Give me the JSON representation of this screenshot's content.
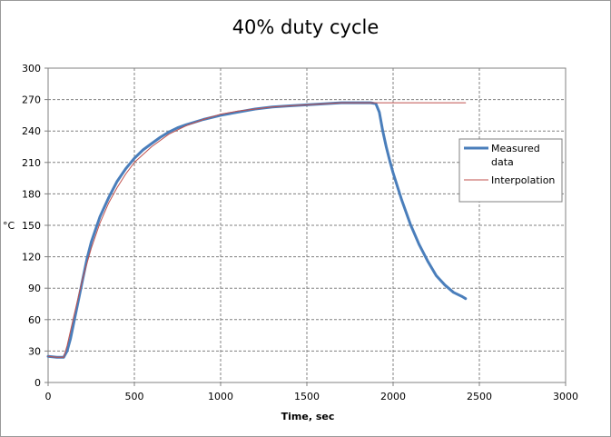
{
  "chart_data": {
    "type": "line",
    "title": "40% duty cycle",
    "xlabel": "Time, sec",
    "ylabel": "°C",
    "xlim": [
      0,
      3000
    ],
    "ylim": [
      0,
      300
    ],
    "x_ticks": [
      0,
      500,
      1000,
      1500,
      2000,
      2500,
      3000
    ],
    "y_ticks": [
      0,
      30,
      60,
      90,
      120,
      150,
      180,
      210,
      240,
      270,
      300
    ],
    "grid": true,
    "legend_position": "right",
    "series": [
      {
        "name": "Measured data",
        "color": "#4a7ebb",
        "x": [
          0,
          50,
          90,
          110,
          130,
          150,
          175,
          200,
          225,
          250,
          300,
          350,
          400,
          450,
          500,
          550,
          600,
          650,
          700,
          750,
          800,
          900,
          1000,
          1100,
          1200,
          1300,
          1400,
          1500,
          1600,
          1700,
          1800,
          1870,
          1900,
          1920,
          1940,
          1960,
          1980,
          2000,
          2050,
          2100,
          2150,
          2200,
          2250,
          2300,
          2350,
          2400,
          2420
        ],
        "y": [
          25,
          24,
          24,
          30,
          42,
          58,
          78,
          98,
          118,
          134,
          158,
          176,
          192,
          204,
          214,
          222,
          228,
          234,
          239,
          243,
          246,
          251,
          255,
          258,
          261,
          263,
          264,
          265,
          266,
          267,
          267,
          267,
          266,
          258,
          240,
          225,
          212,
          200,
          174,
          151,
          132,
          116,
          102,
          93,
          86,
          82,
          80
        ]
      },
      {
        "name": "Interpolation",
        "color": "#c0504d",
        "x": [
          0,
          50,
          90,
          110,
          150,
          200,
          250,
          300,
          350,
          400,
          450,
          500,
          600,
          700,
          800,
          900,
          1000,
          1100,
          1200,
          1300,
          1400,
          1500,
          1600,
          1700,
          1800,
          1900,
          2000,
          2200,
          2420
        ],
        "y": [
          25,
          24,
          24,
          35,
          64,
          99,
          128,
          152,
          171,
          186,
          199,
          210,
          225,
          237,
          245,
          251,
          256,
          259,
          261,
          263,
          264,
          265,
          266,
          267,
          267,
          267,
          267,
          267,
          267
        ]
      }
    ]
  }
}
